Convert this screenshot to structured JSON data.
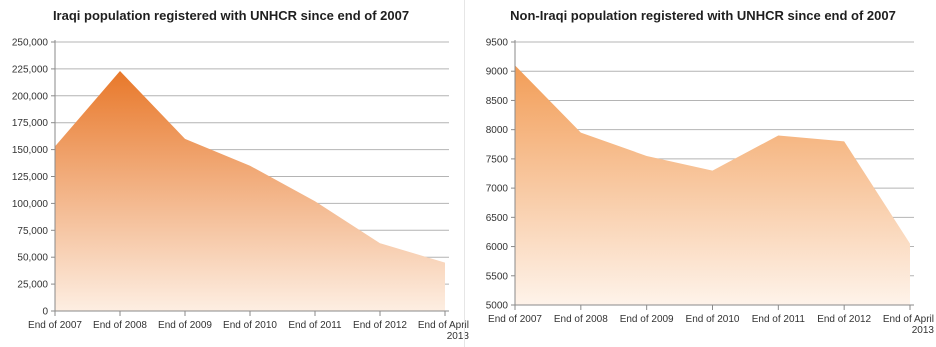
{
  "chart_data": [
    {
      "type": "area",
      "title": "Iraqi population  registered with UNHCR since end of 2007",
      "categories": [
        "End of 2007",
        "End of 2008",
        "End of 2009",
        "End of 2010",
        "End of 2011",
        "End of 2012",
        "End of April 2013"
      ],
      "category_lines": [
        [
          "End of 2007"
        ],
        [
          "End of 2008"
        ],
        [
          "End of 2009"
        ],
        [
          "End of 2010"
        ],
        [
          "End of 2011"
        ],
        [
          "End of 2012"
        ],
        [
          "End of April",
          "2013"
        ]
      ],
      "series": [
        {
          "values": [
            153000,
            223000,
            160000,
            135000,
            102000,
            63000,
            45000
          ]
        }
      ],
      "ylim": [
        0,
        250000
      ],
      "yticks": [
        0,
        25000,
        50000,
        75000,
        100000,
        125000,
        150000,
        175000,
        200000,
        225000,
        250000
      ],
      "ytick_labels": [
        "0",
        "25,000",
        "50,000",
        "75,000",
        "100,000",
        "125,000",
        "150,000",
        "175,000",
        "200,000",
        "225,000",
        "250,000"
      ],
      "grid": true,
      "fill_top_color": "#e8782a",
      "fill_bottom_color": "#fdeee2",
      "xlabel": "",
      "ylabel": ""
    },
    {
      "type": "area",
      "title": "Non-Iraqi population  registered with UNHCR since end of 2007",
      "categories": [
        "End of 2007",
        "End of 2008",
        "End of 2009",
        "End of 2010",
        "End of 2011",
        "End of 2012",
        "End of April 2013"
      ],
      "category_lines": [
        [
          "End of 2007"
        ],
        [
          "End of 2008"
        ],
        [
          "End of 2009"
        ],
        [
          "End of 2010"
        ],
        [
          "End of 2011"
        ],
        [
          "End of 2012"
        ],
        [
          "End of April",
          "2013"
        ]
      ],
      "series": [
        {
          "values": [
            9100,
            7950,
            7550,
            7300,
            7900,
            7800,
            6050
          ]
        }
      ],
      "ylim": [
        5000,
        9500
      ],
      "yticks": [
        5000,
        5500,
        6000,
        6500,
        7000,
        7500,
        8000,
        8500,
        9000,
        9500
      ],
      "ytick_labels": [
        "5000",
        "5500",
        "6000",
        "6500",
        "7000",
        "7500",
        "8000",
        "8500",
        "9000",
        "9500"
      ],
      "grid": true,
      "fill_top_color": "#f29d57",
      "fill_bottom_color": "#fef3ea",
      "xlabel": "",
      "ylabel": ""
    }
  ]
}
